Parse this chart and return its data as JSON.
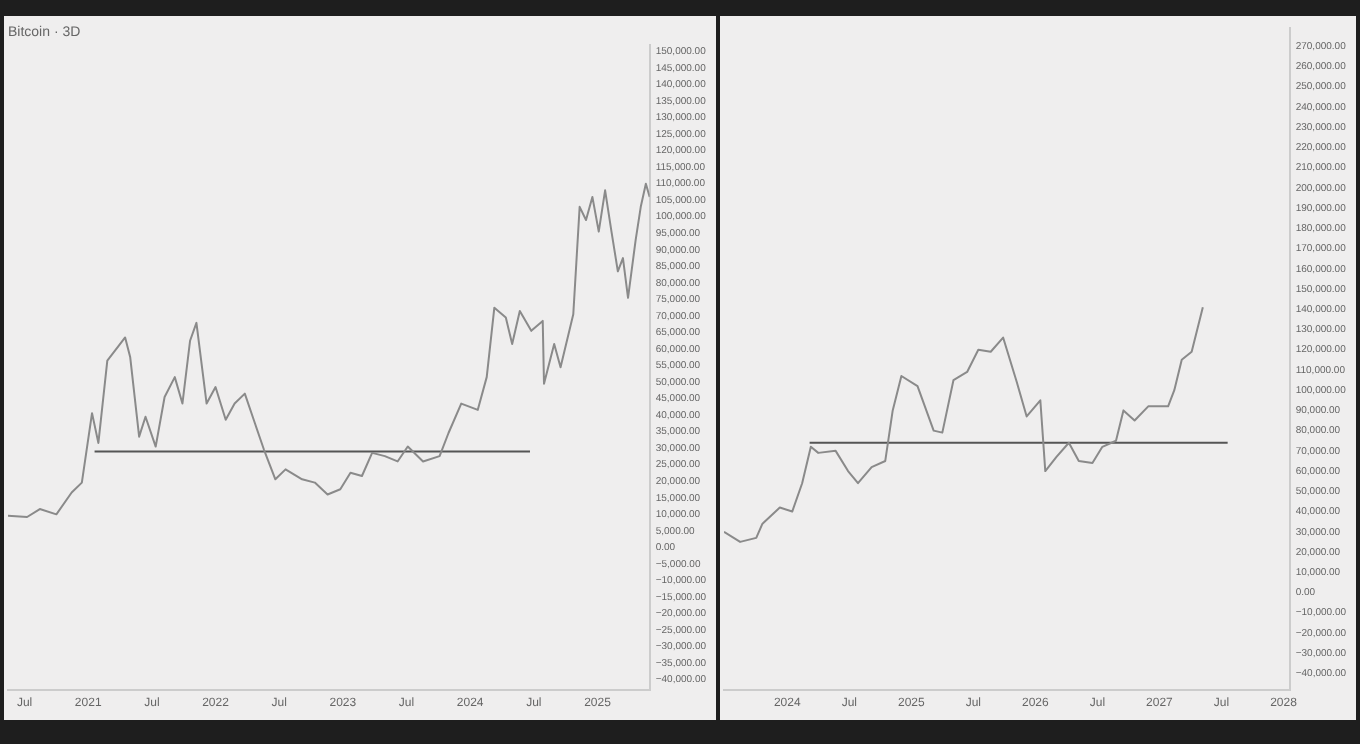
{
  "chart_data": [
    {
      "type": "line",
      "title": "Bitcoin · 3D",
      "xlim": [
        2020.37,
        2025.41
      ],
      "ylim": [
        -43000,
        152000
      ],
      "xticks": [
        {
          "value": 2020.5,
          "label": "Jul"
        },
        {
          "value": 2021,
          "label": "2021"
        },
        {
          "value": 2021.5,
          "label": "Jul"
        },
        {
          "value": 2022,
          "label": "2022"
        },
        {
          "value": 2022.5,
          "label": "Jul"
        },
        {
          "value": 2023,
          "label": "2023"
        },
        {
          "value": 2023.5,
          "label": "Jul"
        },
        {
          "value": 2024,
          "label": "2024"
        },
        {
          "value": 2024.5,
          "label": "Jul"
        },
        {
          "value": 2025,
          "label": "2025"
        }
      ],
      "yticks": [
        {
          "value": -40000,
          "label": "−40,000.00"
        },
        {
          "value": -35000,
          "label": "−35,000.00"
        },
        {
          "value": -30000,
          "label": "−30,000.00"
        },
        {
          "value": -25000,
          "label": "−25,000.00"
        },
        {
          "value": -20000,
          "label": "−20,000.00"
        },
        {
          "value": -15000,
          "label": "−15,000.00"
        },
        {
          "value": -10000,
          "label": "−10,000.00"
        },
        {
          "value": -5000,
          "label": "−5,000.00"
        },
        {
          "value": 0,
          "label": "0.00"
        },
        {
          "value": 5000,
          "label": "5,000.00"
        },
        {
          "value": 10000,
          "label": "10,000.00"
        },
        {
          "value": 15000,
          "label": "15,000.00"
        },
        {
          "value": 20000,
          "label": "20,000.00"
        },
        {
          "value": 25000,
          "label": "25,000.00"
        },
        {
          "value": 30000,
          "label": "30,000.00"
        },
        {
          "value": 35000,
          "label": "35,000.00"
        },
        {
          "value": 40000,
          "label": "40,000.00"
        },
        {
          "value": 45000,
          "label": "45,000.00"
        },
        {
          "value": 50000,
          "label": "50,000.00"
        },
        {
          "value": 55000,
          "label": "55,000.00"
        },
        {
          "value": 60000,
          "label": "60,000.00"
        },
        {
          "value": 65000,
          "label": "65,000.00"
        },
        {
          "value": 70000,
          "label": "70,000.00"
        },
        {
          "value": 75000,
          "label": "75,000.00"
        },
        {
          "value": 80000,
          "label": "80,000.00"
        },
        {
          "value": 85000,
          "label": "85,000.00"
        },
        {
          "value": 90000,
          "label": "90,000.00"
        },
        {
          "value": 95000,
          "label": "95,000.00"
        },
        {
          "value": 100000,
          "label": "100,000.00"
        },
        {
          "value": 105000,
          "label": "105,000.00"
        },
        {
          "value": 110000,
          "label": "110,000.00"
        },
        {
          "value": 115000,
          "label": "115,000.00"
        },
        {
          "value": 120000,
          "label": "120,000.00"
        },
        {
          "value": 125000,
          "label": "125,000.00"
        },
        {
          "value": 130000,
          "label": "130,000.00"
        },
        {
          "value": 135000,
          "label": "135,000.00"
        },
        {
          "value": 140000,
          "label": "140,000.00"
        },
        {
          "value": 145000,
          "label": "145,000.00"
        },
        {
          "value": 150000,
          "label": "150,000.00"
        }
      ],
      "series": [
        {
          "type": "line",
          "color": "#8a8a8a",
          "x": [
            2020.37,
            2020.52,
            2020.62,
            2020.75,
            2020.87,
            2020.95,
            2021.03,
            2021.08,
            2021.15,
            2021.23,
            2021.29,
            2021.33,
            2021.4,
            2021.45,
            2021.53,
            2021.6,
            2021.68,
            2021.74,
            2021.8,
            2021.85,
            2021.93,
            2022.0,
            2022.08,
            2022.15,
            2022.23,
            2022.3,
            2022.38,
            2022.47,
            2022.55,
            2022.68,
            2022.78,
            2022.88,
            2022.98,
            2023.06,
            2023.15,
            2023.23,
            2023.33,
            2023.43,
            2023.51,
            2023.63,
            2023.76,
            2023.83,
            2023.93,
            2024.06,
            2024.13,
            2024.19,
            2024.28,
            2024.33,
            2024.39,
            2024.48,
            2024.57,
            2024.58,
            2024.66,
            2024.71,
            2024.81,
            2024.86,
            2024.91,
            2024.96,
            2025.01,
            2025.06,
            2025.11,
            2025.16,
            2025.2,
            2025.24,
            2025.3,
            2025.34,
            2025.38,
            2025.41
          ],
          "values": [
            9600,
            9200,
            11600,
            10000,
            16600,
            19600,
            40600,
            31600,
            56500,
            60500,
            63500,
            57500,
            33500,
            39500,
            30500,
            45500,
            51500,
            43500,
            62500,
            67900,
            43500,
            48500,
            38600,
            43500,
            46500,
            38600,
            29600,
            20600,
            23600,
            20600,
            19600,
            16000,
            17600,
            22600,
            21600,
            28600,
            27600,
            26000,
            30500,
            26000,
            27600,
            34600,
            43500,
            41600,
            51500,
            72500,
            69500,
            61500,
            71500,
            65500,
            68500,
            49500,
            61500,
            54500,
            70500,
            103000,
            99000,
            106000,
            95500,
            108000,
            95500,
            83500,
            87500,
            75500,
            93000,
            103000,
            110000,
            106000
          ]
        },
        {
          "type": "line",
          "color": "#555555",
          "x": [
            2021.05,
            2024.47
          ],
          "values": [
            29000,
            29000
          ]
        }
      ]
    },
    {
      "type": "line",
      "xlim": [
        2023.49,
        2028.05
      ],
      "ylim": [
        -48000,
        279000
      ],
      "xticks": [
        {
          "value": 2024,
          "label": "2024"
        },
        {
          "value": 2024.5,
          "label": "Jul"
        },
        {
          "value": 2025,
          "label": "2025"
        },
        {
          "value": 2025.5,
          "label": "Jul"
        },
        {
          "value": 2026,
          "label": "2026"
        },
        {
          "value": 2026.5,
          "label": "Jul"
        },
        {
          "value": 2027,
          "label": "2027"
        },
        {
          "value": 2027.5,
          "label": "Jul"
        },
        {
          "value": 2028,
          "label": "2028"
        }
      ],
      "yticks": [
        {
          "value": -40000,
          "label": "−40,000.00"
        },
        {
          "value": -30000,
          "label": "−30,000.00"
        },
        {
          "value": -20000,
          "label": "−20,000.00"
        },
        {
          "value": -10000,
          "label": "−10,000.00"
        },
        {
          "value": 0,
          "label": "0.00"
        },
        {
          "value": 10000,
          "label": "10,000.00"
        },
        {
          "value": 20000,
          "label": "20,000.00"
        },
        {
          "value": 30000,
          "label": "30,000.00"
        },
        {
          "value": 40000,
          "label": "40,000.00"
        },
        {
          "value": 50000,
          "label": "50,000.00"
        },
        {
          "value": 60000,
          "label": "60,000.00"
        },
        {
          "value": 70000,
          "label": "70,000.00"
        },
        {
          "value": 80000,
          "label": "80,000.00"
        },
        {
          "value": 90000,
          "label": "90,000.00"
        },
        {
          "value": 100000,
          "label": "100,000.00"
        },
        {
          "value": 110000,
          "label": "110,000.00"
        },
        {
          "value": 120000,
          "label": "120,000.00"
        },
        {
          "value": 130000,
          "label": "130,000.00"
        },
        {
          "value": 140000,
          "label": "140,000.00"
        },
        {
          "value": 150000,
          "label": "150,000.00"
        },
        {
          "value": 160000,
          "label": "160,000.00"
        },
        {
          "value": 170000,
          "label": "170,000.00"
        },
        {
          "value": 180000,
          "label": "180,000.00"
        },
        {
          "value": 190000,
          "label": "190,000.00"
        },
        {
          "value": 200000,
          "label": "200,000.00"
        },
        {
          "value": 210000,
          "label": "210,000.00"
        },
        {
          "value": 220000,
          "label": "220,000.00"
        },
        {
          "value": 230000,
          "label": "230,000.00"
        },
        {
          "value": 240000,
          "label": "240,000.00"
        },
        {
          "value": 250000,
          "label": "250,000.00"
        },
        {
          "value": 260000,
          "label": "260,000.00"
        },
        {
          "value": 270000,
          "label": "270,000.00"
        }
      ],
      "series": [
        {
          "type": "line",
          "color": "#8a8a8a",
          "x": [
            2023.49,
            2023.62,
            2023.75,
            2023.8,
            2023.94,
            2024.04,
            2024.12,
            2024.19,
            2024.25,
            2024.39,
            2024.49,
            2024.57,
            2024.68,
            2024.79,
            2024.85,
            2024.92,
            2025.05,
            2025.18,
            2025.25,
            2025.34,
            2025.45,
            2025.54,
            2025.64,
            2025.74,
            2025.85,
            2025.93,
            2026.04,
            2026.08,
            2026.17,
            2026.27,
            2026.35,
            2026.46,
            2026.54,
            2026.65,
            2026.71,
            2026.8,
            2026.91,
            2027.07,
            2027.12,
            2027.18,
            2027.26,
            2027.35
          ],
          "values": [
            30000,
            25000,
            27000,
            34000,
            42000,
            40000,
            54000,
            72000,
            69000,
            70000,
            60000,
            54000,
            62000,
            65000,
            90000,
            107000,
            102000,
            80000,
            79000,
            105000,
            109000,
            120000,
            119000,
            126000,
            104000,
            87000,
            95000,
            60000,
            67000,
            74000,
            65000,
            64000,
            72000,
            75000,
            90000,
            85000,
            92000,
            92000,
            100000,
            115000,
            119000,
            141000
          ]
        },
        {
          "type": "line",
          "color": "#555555",
          "x": [
            2024.18,
            2027.55
          ],
          "values": [
            74000,
            74000
          ]
        }
      ]
    }
  ]
}
